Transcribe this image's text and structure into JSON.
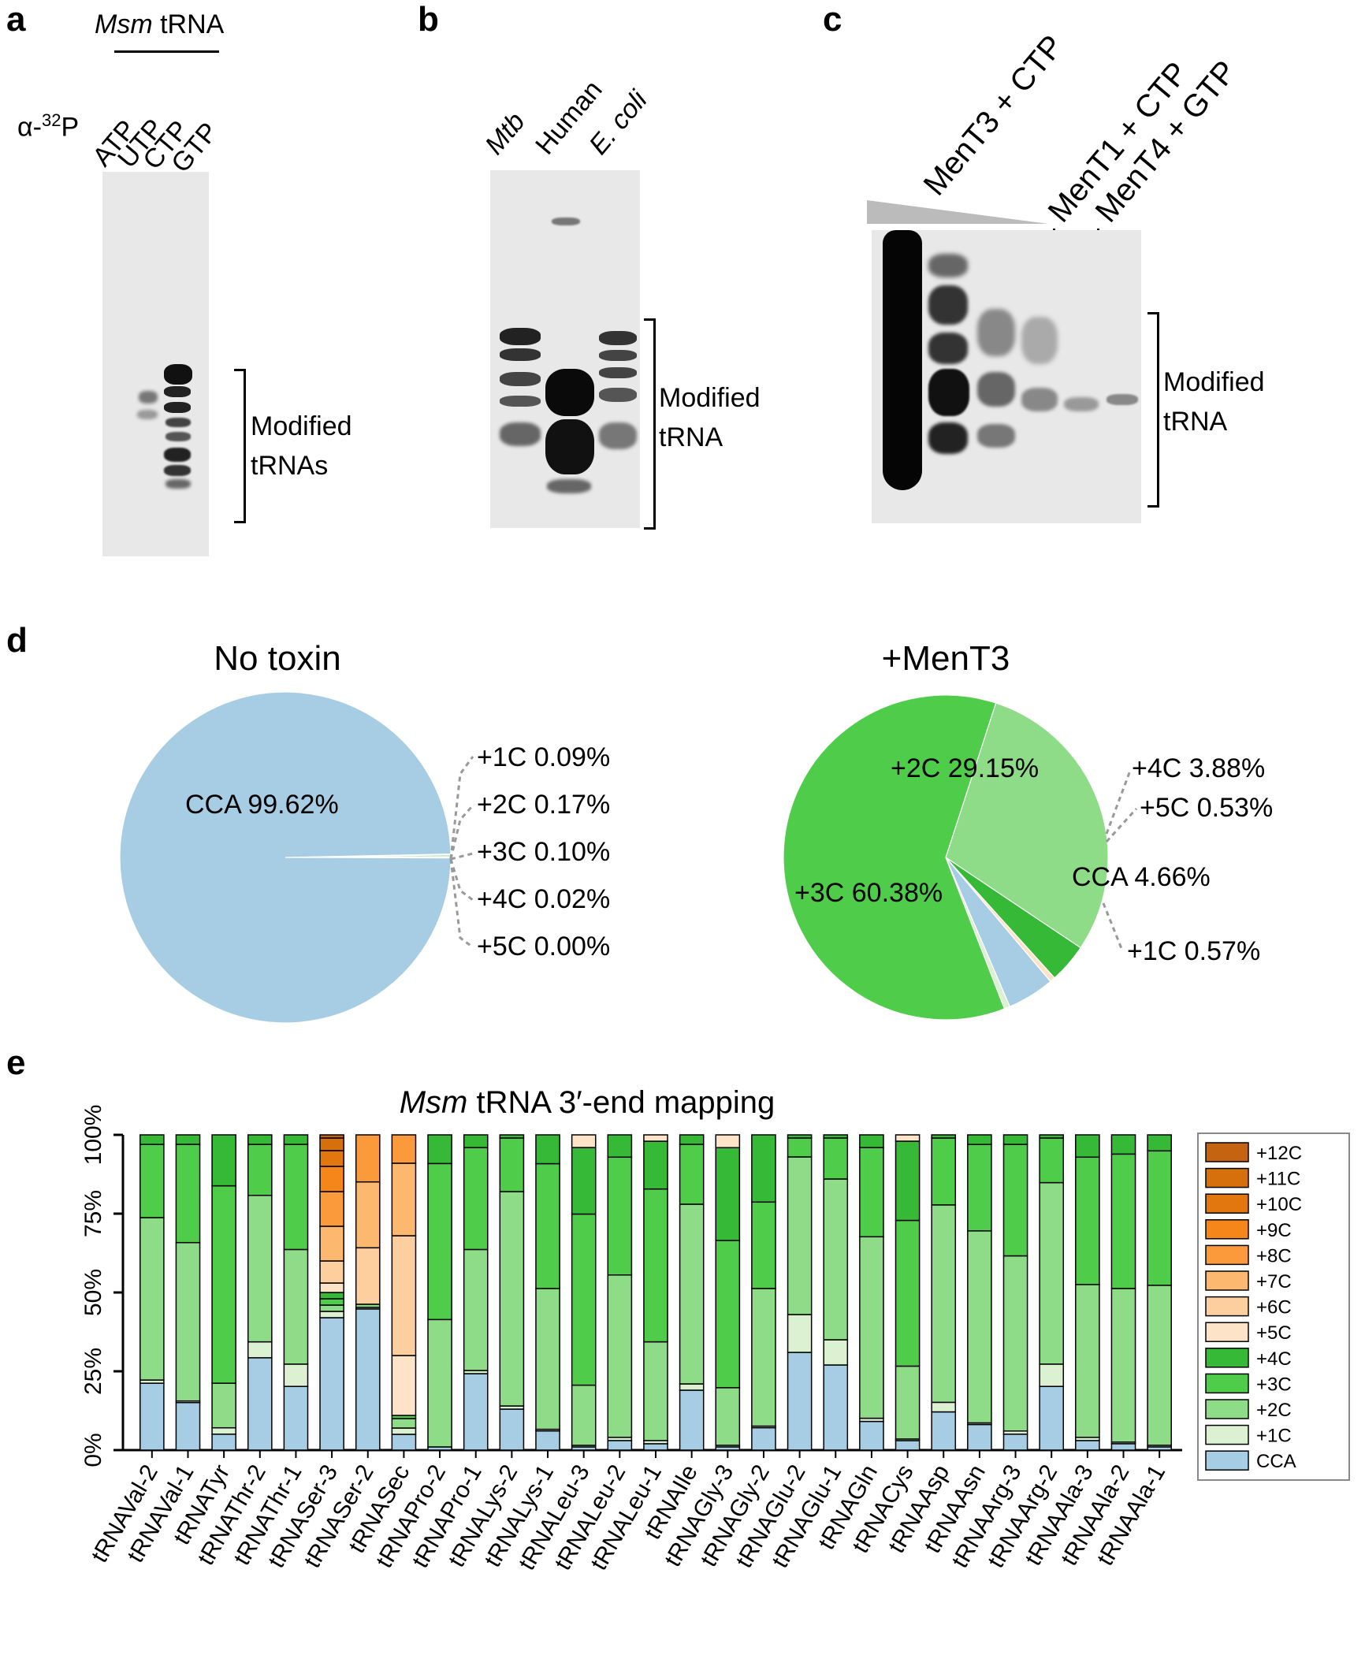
{
  "panels": {
    "a": "a",
    "b": "b",
    "c": "c",
    "d": "d",
    "e": "e"
  },
  "panel_a": {
    "header_italic": "Msm",
    "header_rest": " tRNA",
    "isotope_prefix": "α-",
    "isotope_sup": "32",
    "isotope_suffix": "P",
    "lanes": [
      "ATP",
      "UTP",
      "CTP",
      "GTP"
    ],
    "bracket_label_1": "Modified",
    "bracket_label_2": "tRNAs"
  },
  "panel_b": {
    "lanes": [
      "Mtb",
      "Human",
      "E. coli"
    ],
    "bracket_label_1": "Modified",
    "bracket_label_2": "tRNA"
  },
  "panel_c": {
    "lane_group_1": "MenT3 + CTP",
    "lane_group_2": "MenT1 + CTP",
    "lane_group_3": "MenT4 + GTP",
    "bracket_label_1": "Modified",
    "bracket_label_2": "tRNA"
  },
  "colors": {
    "CCA": "#a6cde3",
    "+1C": "#dcf0d2",
    "+2C": "#8fdc88",
    "+3C": "#4fcc4a",
    "+4C": "#36b936",
    "+5C": "#fde3c8",
    "+6C": "#fdcf9f",
    "+7C": "#fdb870",
    "+8C": "#fb9a3a",
    "+9C": "#f5861a",
    "+10C": "#e2760f",
    "+11C": "#d6700c",
    "+12C": "#c46410"
  },
  "chart_data": [
    {
      "type": "pie",
      "title": "No toxin",
      "slices": [
        {
          "label": "CCA",
          "value": 99.62,
          "text": "CCA 99.62%"
        },
        {
          "label": "+1C",
          "value": 0.09,
          "text": "+1C 0.09%"
        },
        {
          "label": "+2C",
          "value": 0.17,
          "text": "+2C 0.17%"
        },
        {
          "label": "+3C",
          "value": 0.1,
          "text": "+3C 0.10%"
        },
        {
          "label": "+4C",
          "value": 0.02,
          "text": "+4C 0.02%"
        },
        {
          "label": "+5C",
          "value": 0.0,
          "text": "+5C 0.00%"
        }
      ]
    },
    {
      "type": "pie",
      "title": "+MenT3",
      "slices": [
        {
          "label": "+2C",
          "value": 29.15,
          "text": "+2C 29.15%"
        },
        {
          "label": "+3C",
          "value": 60.38,
          "text": "+3C 60.38%"
        },
        {
          "label": "+4C",
          "value": 3.88,
          "text": "+4C 3.88%"
        },
        {
          "label": "+5C",
          "value": 0.53,
          "text": "+5C 0.53%"
        },
        {
          "label": "CCA",
          "value": 4.66,
          "text": "CCA 4.66%"
        },
        {
          "label": "+1C",
          "value": 0.57,
          "text": "+1C 0.57%"
        }
      ]
    },
    {
      "type": "bar",
      "stacked": true,
      "title_italic": "Msm",
      "title_rest": " tRNA 3′-end mapping",
      "ylim": [
        0,
        100
      ],
      "yticks": [
        "0%",
        "25%",
        "50%",
        "75%",
        "100%"
      ],
      "legend": [
        "+12C",
        "+11C",
        "+10C",
        "+9C",
        "+8C",
        "+7C",
        "+6C",
        "+5C",
        "+4C",
        "+3C",
        "+2C",
        "+1C",
        "CCA"
      ],
      "series_order": [
        "CCA",
        "+1C",
        "+2C",
        "+3C",
        "+4C",
        "+5C",
        "+6C",
        "+7C",
        "+8C",
        "+9C",
        "+10C",
        "+11C",
        "+12C"
      ],
      "categories": [
        "tRNAVal-2",
        "tRNAVal-1",
        "tRNATyr",
        "tRNAThr-2",
        "tRNAThr-1",
        "tRNASer-3",
        "tRNASer-2",
        "tRNASec",
        "tRNAPro-2",
        "tRNAPro-1",
        "tRNALys-2",
        "tRNALys-1",
        "tRNALeu-3",
        "tRNALeu-2",
        "tRNALeu-1",
        "tRNAIle",
        "tRNAGly-3",
        "tRNAGly-2",
        "tRNAGlu-2",
        "tRNAGlu-1",
        "tRNAGln",
        "tRNACys",
        "tRNAAsp",
        "tRNAAsn",
        "tRNAArg-3",
        "tRNAArg-2",
        "tRNAAla-3",
        "tRNAAla-2",
        "tRNAAla-1"
      ],
      "stacks": [
        [
          21,
          1,
          51,
          23,
          3,
          0,
          0,
          0,
          0,
          0,
          0,
          0,
          0
        ],
        [
          15,
          0.5,
          50,
          31,
          3,
          0,
          0,
          0,
          0,
          0,
          0,
          0,
          0
        ],
        [
          5,
          2,
          14,
          62,
          16,
          0,
          0,
          0,
          0,
          0,
          0,
          0,
          0
        ],
        [
          29,
          5,
          46,
          16,
          3,
          0,
          0,
          0,
          0,
          0,
          0,
          0,
          0
        ],
        [
          20,
          7,
          36,
          33,
          3,
          0,
          0,
          0,
          0,
          0,
          0,
          0,
          0
        ],
        [
          42,
          2,
          2,
          2,
          2,
          3,
          7,
          11,
          11,
          8,
          5,
          4,
          1
        ],
        [
          45,
          0.5,
          1,
          0,
          0,
          0,
          18,
          21,
          15,
          0,
          0,
          0,
          0
        ],
        [
          5,
          2,
          3,
          1,
          0,
          19,
          38,
          23,
          9,
          0,
          0,
          0,
          0
        ],
        [
          1,
          0,
          40,
          49,
          9,
          0,
          0,
          0,
          0,
          0,
          0,
          0,
          0
        ],
        [
          24,
          1,
          38,
          32,
          4,
          0,
          0,
          0,
          0,
          0,
          0,
          0,
          0
        ],
        [
          13,
          1,
          68,
          17,
          1,
          0,
          0,
          0,
          0,
          0,
          0,
          0,
          0
        ],
        [
          6,
          0.5,
          44,
          39,
          9,
          0,
          0,
          0,
          0,
          0,
          0,
          0,
          0
        ],
        [
          1,
          0.5,
          19,
          54,
          21,
          4,
          0,
          0,
          0,
          0,
          0,
          0,
          0
        ],
        [
          3,
          1,
          51,
          37,
          7,
          0,
          0,
          0,
          0,
          0,
          0,
          0,
          0
        ],
        [
          2,
          1,
          31,
          48,
          15,
          2,
          0,
          0,
          0,
          0,
          0,
          0,
          0
        ],
        [
          19,
          2,
          57,
          19,
          3,
          0,
          0,
          0,
          0,
          0,
          0,
          0,
          0
        ],
        [
          1,
          0.5,
          18,
          46,
          29,
          4,
          0,
          0,
          0,
          0,
          0,
          0,
          0
        ],
        [
          7,
          0.5,
          43,
          27,
          21,
          0,
          0,
          0,
          0,
          0,
          0,
          0,
          0
        ],
        [
          31,
          12,
          50,
          6,
          1,
          0,
          0,
          0,
          0,
          0,
          0,
          0,
          0
        ],
        [
          27,
          8,
          51,
          13,
          1,
          0,
          0,
          0,
          0,
          0,
          0,
          0,
          0
        ],
        [
          9,
          1,
          57,
          28,
          4,
          0,
          0,
          0,
          0,
          0,
          0,
          0,
          0
        ],
        [
          3,
          0.5,
          23,
          46,
          25,
          2,
          0,
          0,
          0,
          0,
          0,
          0,
          0
        ],
        [
          12,
          3,
          62,
          21,
          1,
          0,
          0,
          0,
          0,
          0,
          0,
          0,
          0
        ],
        [
          8,
          0.5,
          60,
          27,
          3,
          0,
          0,
          0,
          0,
          0,
          0,
          0,
          0
        ],
        [
          5,
          1,
          55,
          35,
          3,
          0,
          0,
          0,
          0,
          0,
          0,
          0,
          0
        ],
        [
          20,
          7,
          57,
          14,
          1,
          0,
          0,
          0,
          0,
          0,
          0,
          0,
          0
        ],
        [
          3,
          1,
          48,
          40,
          7,
          0,
          0,
          0,
          0,
          0,
          0,
          0,
          0
        ],
        [
          2,
          0.5,
          48,
          42,
          6,
          0,
          0,
          0,
          0,
          0,
          0,
          0,
          0
        ],
        [
          1,
          0.5,
          50,
          42,
          5,
          0,
          0,
          0,
          0,
          0,
          0,
          0,
          0
        ]
      ]
    }
  ]
}
